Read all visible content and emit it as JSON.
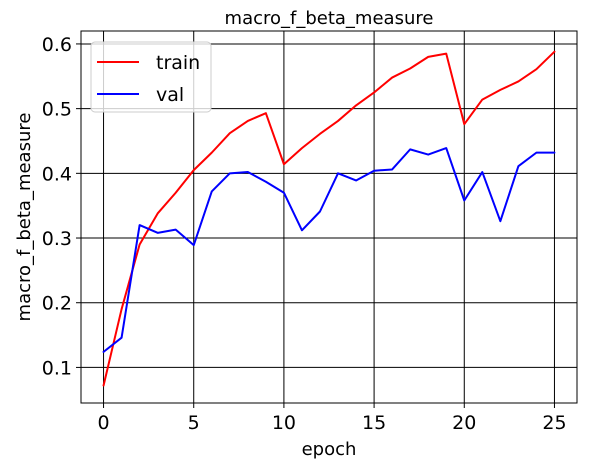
{
  "chart_data": {
    "type": "line",
    "title": "macro_f_beta_measure",
    "xlabel": "epoch",
    "ylabel": "macro_f_beta_measure",
    "xlim": [
      -1.25,
      26.25
    ],
    "ylim": [
      0.045,
      0.62
    ],
    "xticks": [
      0,
      5,
      10,
      15,
      20,
      25
    ],
    "yticks": [
      0.1,
      0.2,
      0.3,
      0.4,
      0.5,
      0.6
    ],
    "grid": true,
    "legend_position": "upper-left",
    "x": [
      0,
      1,
      2,
      3,
      4,
      5,
      6,
      7,
      8,
      9,
      10,
      11,
      12,
      13,
      14,
      15,
      16,
      17,
      18,
      19,
      20,
      21,
      22,
      23,
      24,
      25
    ],
    "series": [
      {
        "name": "train",
        "color": "#ff0000",
        "values": [
          0.072,
          0.19,
          0.29,
          0.338,
          0.37,
          0.405,
          0.432,
          0.462,
          0.481,
          0.493,
          0.414,
          0.439,
          0.461,
          0.481,
          0.505,
          0.525,
          0.548,
          0.562,
          0.58,
          0.585,
          0.476,
          0.514,
          0.529,
          0.542,
          0.561,
          0.588
        ]
      },
      {
        "name": "val",
        "color": "#0000ff",
        "values": [
          0.124,
          0.146,
          0.32,
          0.308,
          0.313,
          0.289,
          0.372,
          0.4,
          0.402,
          0.387,
          0.37,
          0.312,
          0.341,
          0.4,
          0.389,
          0.404,
          0.406,
          0.437,
          0.429,
          0.439,
          0.358,
          0.402,
          0.326,
          0.411,
          0.432,
          0.432
        ]
      }
    ]
  }
}
